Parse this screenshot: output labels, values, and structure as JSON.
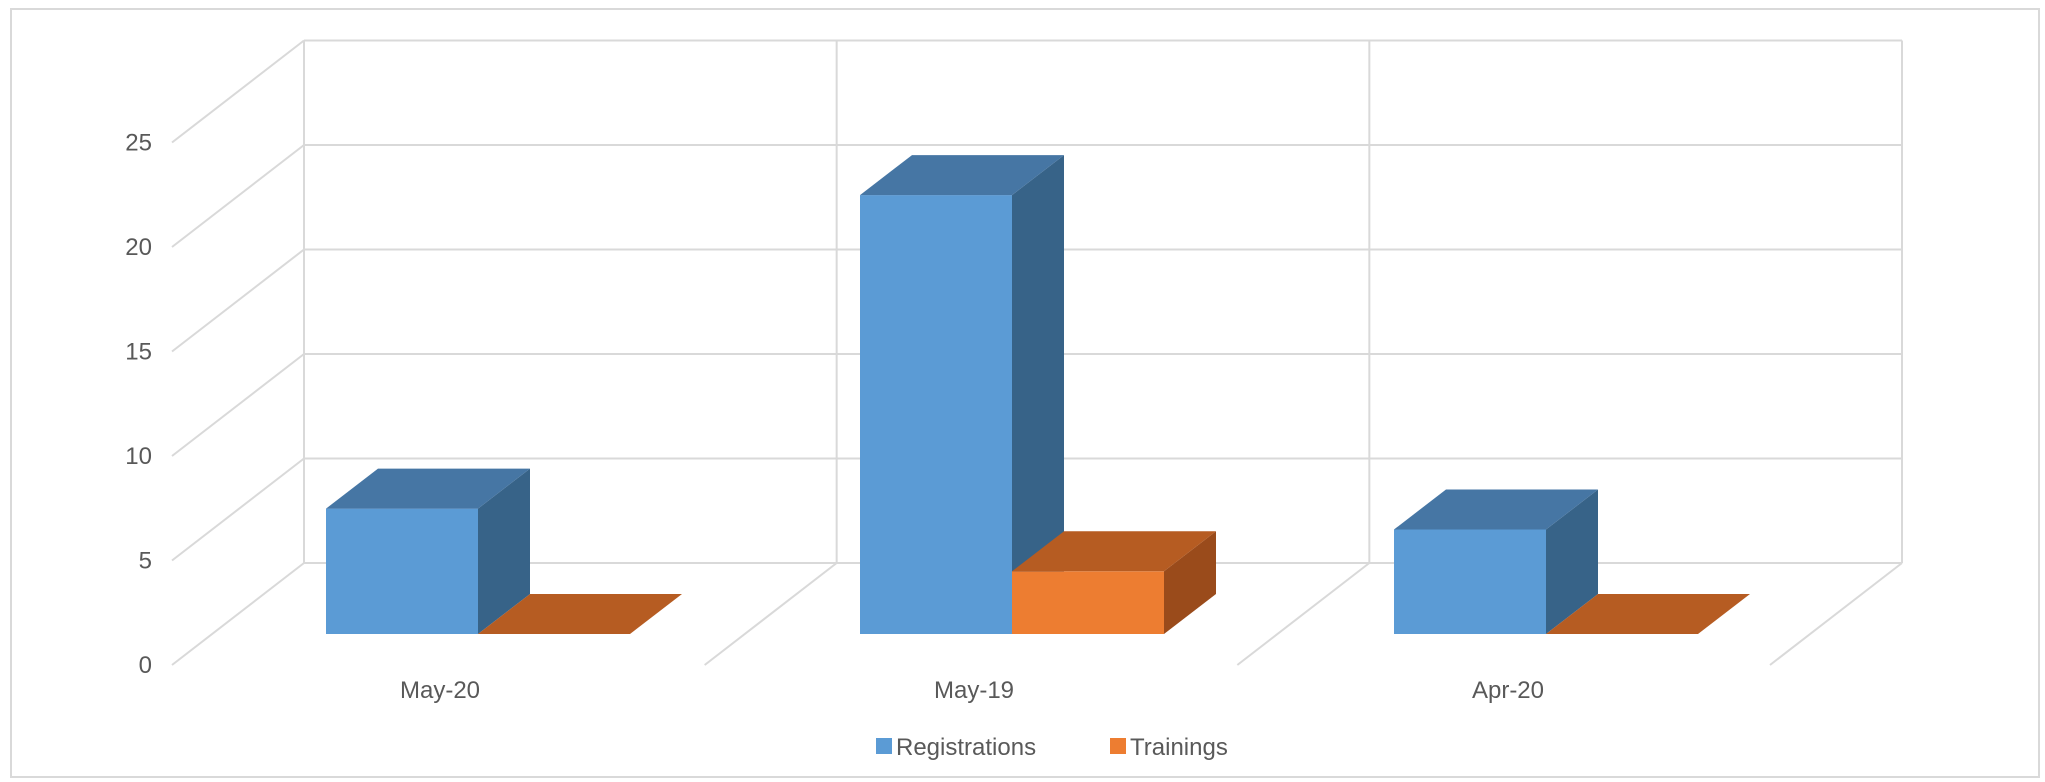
{
  "chart_data": {
    "type": "bar",
    "categories": [
      "May-20",
      "May-19",
      "Apr-20"
    ],
    "series": [
      {
        "name": "Registrations",
        "values": [
          6,
          21,
          5
        ]
      },
      {
        "name": "Trainings",
        "values": [
          0,
          3,
          0
        ]
      }
    ],
    "yticks": [
      "0",
      "5",
      "10",
      "15",
      "20",
      "25"
    ],
    "ylim": [
      0,
      25
    ],
    "grid": true,
    "legend": "bottom",
    "colors": {
      "Registrations": {
        "front": "#5b9bd5",
        "top": "#4676a4",
        "side": "#376388"
      },
      "Trainings": {
        "front": "#ed7d31",
        "top": "#b65c22",
        "side": "#9a4b1b"
      },
      "grid": "#d9d9d9",
      "axis_text": "#595959"
    }
  }
}
